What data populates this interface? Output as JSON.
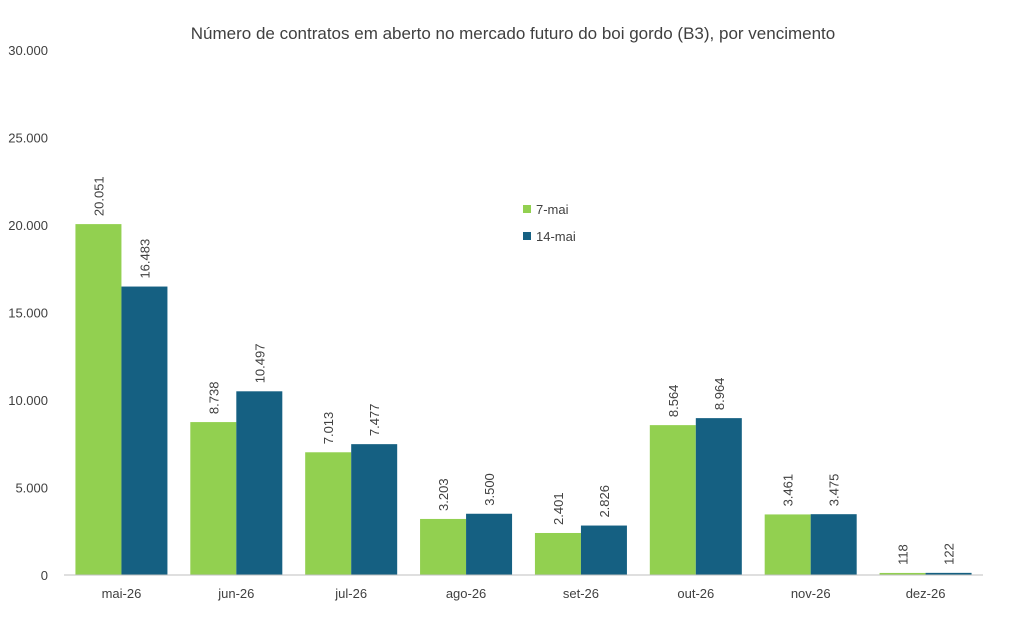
{
  "chart_data": {
    "type": "bar",
    "title": "Número de contratos em aberto no mercado futuro do boi gordo (B3), por vencimento",
    "categories": [
      "mai-26",
      "jun-26",
      "jul-26",
      "ago-26",
      "set-26",
      "out-26",
      "nov-26",
      "dez-26"
    ],
    "series": [
      {
        "name": "7-mai",
        "color": "#92d050",
        "values": [
          20051,
          8738,
          7013,
          3203,
          2401,
          8564,
          3461,
          118
        ],
        "labels": [
          "20.051",
          "8.738",
          "7.013",
          "3.203",
          "2.401",
          "8.564",
          "3.461",
          "118"
        ]
      },
      {
        "name": "14-mai",
        "color": "#156082",
        "values": [
          16483,
          10497,
          7477,
          3500,
          2826,
          8964,
          3475,
          122
        ],
        "labels": [
          "16.483",
          "10.497",
          "7.477",
          "3.500",
          "2.826",
          "8.964",
          "3.475",
          "122"
        ]
      }
    ],
    "ylim": [
      0,
      30000
    ],
    "yticks": [
      0,
      5000,
      10000,
      15000,
      20000,
      25000,
      30000
    ],
    "ytick_labels": [
      "0",
      "5.000",
      "10.000",
      "15.000",
      "20.000",
      "25.000",
      "30.000"
    ],
    "grid": false,
    "legend": "upper-center"
  }
}
